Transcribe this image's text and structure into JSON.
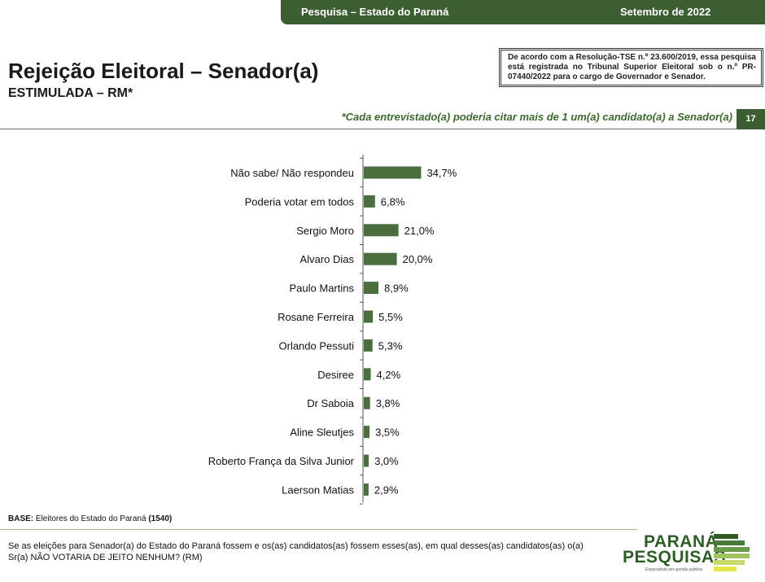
{
  "header": {
    "left": "Pesquisa – Estado do Paraná",
    "right": "Setembro de 2022"
  },
  "title": "Rejeição Eleitoral – Senador(a)",
  "subtitle": "ESTIMULADA – RM*",
  "legal_note": "De acordo com a Resolução-TSE n.º 23.600/2019, essa pesquisa está registrada no Tribunal Superior Eleitoral sob o n.º PR-07440/2022 para o cargo de Governador e Senador.",
  "note": "*Cada entrevistado(a) poderia citar mais de 1 um(a) candidato(a) a Senador(a)",
  "page_number": "17",
  "chart_data": {
    "type": "bar",
    "orientation": "horizontal",
    "bar_color": "#4a6e3d",
    "categories": [
      "Não sabe/  Não respondeu",
      "Poderia votar em todos",
      "Sergio Moro",
      "Alvaro Dias",
      "Paulo Martins",
      "Rosane Ferreira",
      "Orlando Pessuti",
      "Desiree",
      "Dr Saboia",
      "Aline Sleutjes",
      "Roberto França da Silva Junior",
      "Laerson Matias"
    ],
    "values": [
      34.7,
      6.8,
      21.0,
      20.0,
      8.9,
      5.5,
      5.3,
      4.2,
      3.8,
      3.5,
      3.0,
      2.9
    ],
    "labels": [
      "34,7%",
      "6,8%",
      "21,0%",
      "20,0%",
      "8,9%",
      "5,5%",
      "5,3%",
      "4,2%",
      "3,8%",
      "3,5%",
      "3,0%",
      "2,9%"
    ]
  },
  "base": {
    "label": "BASE:",
    "text": " Eleitores do Estado do Paraná ",
    "count": "(1540)"
  },
  "question": "Se as eleições para Senador(a) do Estado do Paraná fossem e os(as) candidatos(as) fossem esses(as), em qual desses(as) candidatos(as) o(a) Sr(a) NÃO VOTARIA DE JEITO NENHUM? (RM)",
  "logo": {
    "line1": "PARANÁ",
    "line2": "PESQUISAS",
    "tagline": "Especialista em opinião pública."
  }
}
